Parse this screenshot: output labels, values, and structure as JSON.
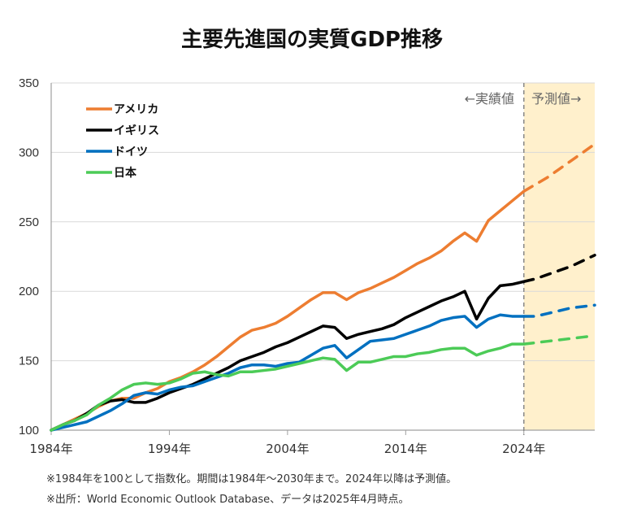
{
  "title": "主要先進国の実質GDP推移",
  "notes": [
    "※1984年を100として指数化。期間は1984年～2030年まで。2024年以降は予測値。",
    "※出所：World Economic Outlook Database、データは2025年4月時点。"
  ],
  "zone_labels": {
    "actual": "←実績値",
    "forecast": "予測値→"
  },
  "colors": {
    "forecast_band": "#FFF0CC",
    "divider": "#888888",
    "grid": "#D9D9D9"
  },
  "chart_data": {
    "type": "line",
    "title": "主要先進国の実質GDP推移",
    "xlabel": "",
    "ylabel": "",
    "x": [
      1984,
      1985,
      1986,
      1987,
      1988,
      1989,
      1990,
      1991,
      1992,
      1993,
      1994,
      1995,
      1996,
      1997,
      1998,
      1999,
      2000,
      2001,
      2002,
      2003,
      2004,
      2005,
      2006,
      2007,
      2008,
      2009,
      2010,
      2011,
      2012,
      2013,
      2014,
      2015,
      2016,
      2017,
      2018,
      2019,
      2020,
      2021,
      2022,
      2023,
      2024,
      2025,
      2026,
      2027,
      2028,
      2029,
      2030
    ],
    "xlim": [
      1984,
      2030
    ],
    "ylim": [
      100,
      350
    ],
    "yticks": [
      100,
      150,
      200,
      250,
      300,
      350
    ],
    "xticks": [
      1984,
      1994,
      2004,
      2014,
      2024
    ],
    "xtick_labels": [
      "1984年",
      "1994年",
      "2004年",
      "2014年",
      "2024年"
    ],
    "grid": true,
    "legend_position": "top-left",
    "forecast_start": 2024,
    "series": [
      {
        "name": "アメリカ",
        "color": "#ED7D31",
        "values": [
          100,
          104,
          108,
          112,
          117,
          121,
          123,
          123,
          127,
          130,
          135,
          138,
          142,
          147,
          153,
          160,
          167,
          172,
          174,
          177,
          182,
          188,
          194,
          199,
          199,
          194,
          199,
          202,
          206,
          210,
          215,
          220,
          224,
          229,
          236,
          242,
          236,
          251,
          258,
          265,
          272,
          277,
          282,
          288,
          294,
          300,
          306
        ]
      },
      {
        "name": "イギリス",
        "color": "#000000",
        "values": [
          100,
          104,
          107,
          112,
          118,
          121,
          122,
          120,
          120,
          123,
          127,
          130,
          133,
          137,
          141,
          145,
          150,
          153,
          156,
          160,
          163,
          167,
          171,
          175,
          174,
          166,
          169,
          171,
          173,
          176,
          181,
          185,
          189,
          193,
          196,
          200,
          180,
          195,
          204,
          205,
          207,
          209,
          212,
          215,
          218,
          222,
          226
        ]
      },
      {
        "name": "ドイツ",
        "color": "#0070C0",
        "values": [
          100,
          102,
          104,
          106,
          110,
          114,
          119,
          125,
          127,
          126,
          129,
          131,
          132,
          135,
          138,
          141,
          145,
          147,
          147,
          146,
          148,
          149,
          154,
          159,
          161,
          152,
          158,
          164,
          165,
          166,
          169,
          172,
          175,
          179,
          181,
          182,
          174,
          180,
          183,
          182,
          182,
          182,
          184,
          186,
          188,
          189,
          190
        ]
      },
      {
        "name": "日本",
        "color": "#4CCB57",
        "values": [
          100,
          104,
          107,
          111,
          118,
          123,
          129,
          133,
          134,
          133,
          134,
          137,
          141,
          142,
          140,
          139,
          142,
          142,
          143,
          144,
          146,
          148,
          150,
          152,
          151,
          143,
          149,
          149,
          151,
          153,
          153,
          155,
          156,
          158,
          159,
          159,
          154,
          157,
          159,
          162,
          162,
          163,
          164,
          165,
          166,
          167,
          168
        ]
      }
    ]
  }
}
